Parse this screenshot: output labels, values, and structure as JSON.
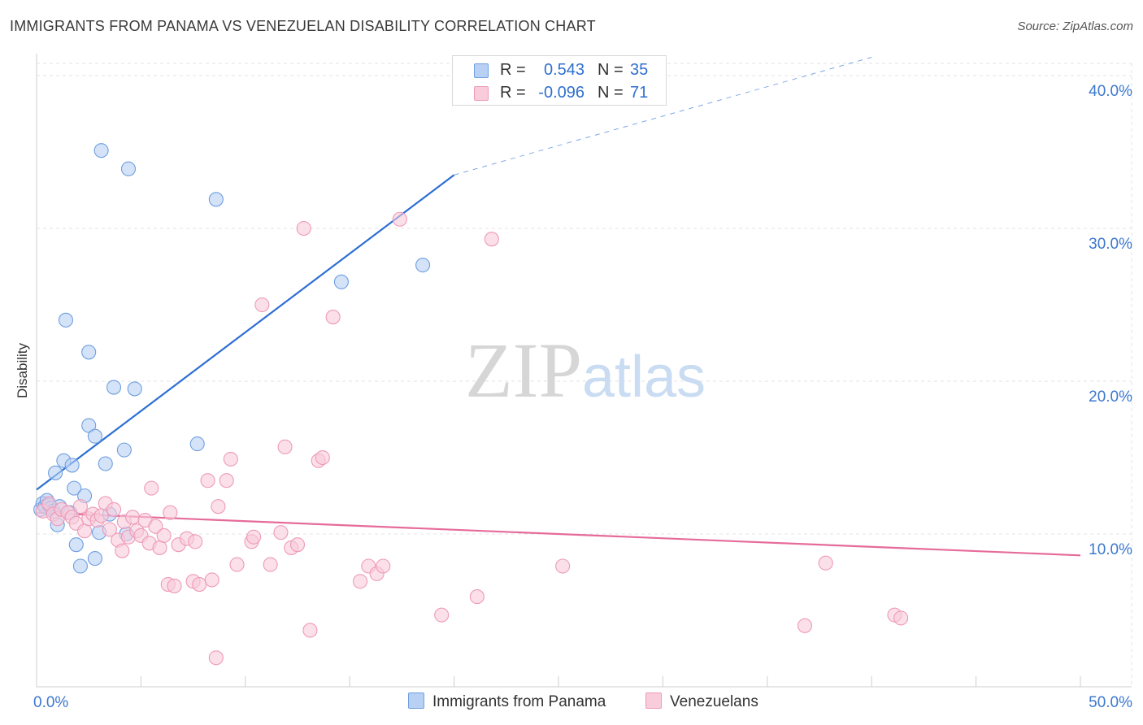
{
  "chart_data": {
    "type": "scatter",
    "title": "IMMIGRANTS FROM PANAMA VS VENEZUELAN DISABILITY CORRELATION CHART",
    "source": "Source: ZipAtlas.com",
    "xlabel": "",
    "ylabel": "Disability",
    "xlim": [
      0,
      50
    ],
    "ylim": [
      0,
      40.8
    ],
    "x_tick_labels": [
      "0.0%",
      "50.0%"
    ],
    "y_ticks": [
      10,
      20,
      30,
      40
    ],
    "y_tick_labels": [
      "10.0%",
      "20.0%",
      "30.0%",
      "40.0%"
    ],
    "grid": true,
    "watermark": "ZIPatlas",
    "legend": {
      "r_label": "R =",
      "n_label": "N =",
      "entries": [
        {
          "name": "Immigrants from Panama",
          "r": "0.543",
          "n": "35"
        },
        {
          "name": "Venezuelans",
          "r": "-0.096",
          "n": "71"
        }
      ]
    },
    "series": [
      {
        "name": "Immigrants from Panama",
        "color": "#6f9fe0",
        "fill": "#b7d0f3",
        "line_color": "#2c6fd3",
        "trend": {
          "x": [
            0.0,
            20.0
          ],
          "y": [
            12.9,
            33.5
          ],
          "dashed_to": [
            40.0,
            41.2
          ]
        },
        "points": [
          [
            0.2,
            11.6
          ],
          [
            0.3,
            12.0
          ],
          [
            0.4,
            11.8
          ],
          [
            0.5,
            12.2
          ],
          [
            0.6,
            11.9
          ],
          [
            0.7,
            11.7
          ],
          [
            0.8,
            11.5
          ],
          [
            0.9,
            14.0
          ],
          [
            1.0,
            10.6
          ],
          [
            1.1,
            11.8
          ],
          [
            1.3,
            14.8
          ],
          [
            1.4,
            24.0
          ],
          [
            1.6,
            11.4
          ],
          [
            1.7,
            14.5
          ],
          [
            1.8,
            13.0
          ],
          [
            1.9,
            9.3
          ],
          [
            2.1,
            7.9
          ],
          [
            2.3,
            12.5
          ],
          [
            2.5,
            21.9
          ],
          [
            2.5,
            17.1
          ],
          [
            2.8,
            16.4
          ],
          [
            2.8,
            8.4
          ],
          [
            3.0,
            10.1
          ],
          [
            3.1,
            35.1
          ],
          [
            3.3,
            14.6
          ],
          [
            3.5,
            11.3
          ],
          [
            3.7,
            19.6
          ],
          [
            4.2,
            15.5
          ],
          [
            4.3,
            10.0
          ],
          [
            4.4,
            33.9
          ],
          [
            4.7,
            19.5
          ],
          [
            7.7,
            15.9
          ],
          [
            8.6,
            31.9
          ],
          [
            14.6,
            26.5
          ],
          [
            18.5,
            27.6
          ]
        ]
      },
      {
        "name": "Venezuelans",
        "color": "#ee9ab7",
        "fill": "#f9ccdb",
        "line_color": "#e56b99",
        "trend": {
          "x": [
            0.0,
            50.0
          ],
          "y": [
            11.4,
            8.6
          ]
        },
        "points": [
          [
            0.3,
            11.5
          ],
          [
            0.6,
            12.0
          ],
          [
            0.8,
            11.3
          ],
          [
            1.0,
            11.0
          ],
          [
            1.2,
            11.6
          ],
          [
            1.5,
            11.4
          ],
          [
            1.7,
            11.1
          ],
          [
            1.9,
            10.7
          ],
          [
            2.1,
            11.8
          ],
          [
            2.3,
            10.2
          ],
          [
            2.5,
            11.0
          ],
          [
            2.7,
            11.3
          ],
          [
            2.9,
            10.9
          ],
          [
            3.1,
            11.2
          ],
          [
            3.3,
            12.0
          ],
          [
            3.5,
            10.3
          ],
          [
            3.7,
            11.6
          ],
          [
            3.9,
            9.6
          ],
          [
            4.1,
            8.9
          ],
          [
            4.2,
            10.8
          ],
          [
            4.4,
            9.8
          ],
          [
            4.6,
            11.1
          ],
          [
            4.8,
            10.2
          ],
          [
            5.0,
            9.9
          ],
          [
            5.2,
            10.9
          ],
          [
            5.4,
            9.4
          ],
          [
            5.5,
            13.0
          ],
          [
            5.7,
            10.5
          ],
          [
            5.9,
            9.1
          ],
          [
            6.1,
            9.9
          ],
          [
            6.3,
            6.7
          ],
          [
            6.4,
            11.4
          ],
          [
            6.6,
            6.6
          ],
          [
            6.8,
            9.3
          ],
          [
            7.2,
            9.7
          ],
          [
            7.5,
            6.9
          ],
          [
            7.6,
            9.5
          ],
          [
            7.8,
            6.7
          ],
          [
            8.2,
            13.5
          ],
          [
            8.4,
            7.0
          ],
          [
            8.6,
            1.9
          ],
          [
            8.7,
            11.8
          ],
          [
            9.1,
            13.5
          ],
          [
            9.3,
            14.9
          ],
          [
            9.6,
            8.0
          ],
          [
            10.3,
            9.5
          ],
          [
            10.4,
            9.8
          ],
          [
            10.8,
            25.0
          ],
          [
            11.2,
            8.0
          ],
          [
            11.7,
            10.1
          ],
          [
            11.9,
            15.7
          ],
          [
            12.2,
            9.1
          ],
          [
            12.5,
            9.3
          ],
          [
            12.8,
            30.0
          ],
          [
            13.1,
            3.7
          ],
          [
            13.5,
            14.8
          ],
          [
            13.7,
            15.0
          ],
          [
            14.2,
            24.2
          ],
          [
            15.5,
            6.9
          ],
          [
            15.9,
            7.9
          ],
          [
            16.3,
            7.4
          ],
          [
            16.6,
            7.9
          ],
          [
            17.4,
            30.6
          ],
          [
            19.4,
            4.7
          ],
          [
            21.1,
            5.9
          ],
          [
            21.8,
            29.3
          ],
          [
            25.2,
            7.9
          ],
          [
            36.8,
            4.0
          ],
          [
            37.8,
            8.1
          ],
          [
            41.1,
            4.7
          ],
          [
            41.4,
            4.5
          ]
        ]
      }
    ]
  }
}
